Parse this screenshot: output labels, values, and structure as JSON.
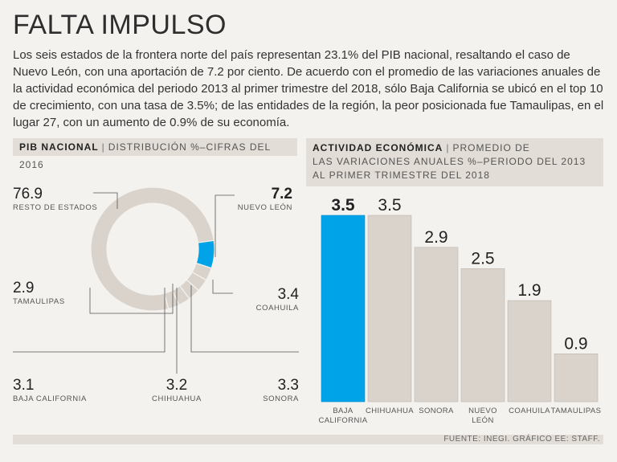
{
  "title": "FALTA IMPULSO",
  "intro": "Los seis estados de la frontera norte del país representan 23.1% del PIB nacional, resaltando el caso de Nuevo León, con una aportación de 7.2 por ciento. De acuerdo con el promedio de las variaciones anuales de la actividad económica del periodo 2013 al primer trimestre del 2018, sólo Baja California se ubicó en el top 10 de crecimiento, con una tasa de 3.5%; de las entidades de la región, la peor posicionada fue Tamaulipas, en el lugar 27, con un aumento de 0.9% de su economía.",
  "left_panel": {
    "label": "PIB NACIONAL",
    "sub": "DISTRIBUCIÓN %–CIFRAS DEL 2016"
  },
  "right_panel": {
    "label": "ACTIVIDAD ECONÓMICA",
    "sub1": "PROMEDIO DE",
    "sub2": "LAS VARIACIONES ANUALES %–PERIODO DEL 2013",
    "sub3": "AL PRIMER TRIMESTRE DEL 2018"
  },
  "footer": "FUENTE: INEGI. GRÁFICO EE: STAFF.",
  "colors": {
    "highlight": "#00a3e8",
    "base": "#d9d3cb",
    "outline": "#bdb6ad"
  },
  "chart_data": [
    {
      "type": "pie",
      "title": "PIB NACIONAL",
      "subtitle": "DISTRIBUCIÓN %–CIFRAS DEL 2016",
      "slices": [
        {
          "label": "RESTO DE ESTADOS",
          "value": 76.9
        },
        {
          "label": "NUEVO LEÓN",
          "value": 7.2
        },
        {
          "label": "COAHUILA",
          "value": 3.4
        },
        {
          "label": "SONORA",
          "value": 3.3
        },
        {
          "label": "CHIHUAHUA",
          "value": 3.2
        },
        {
          "label": "BAJA CALIFORNIA",
          "value": 3.1
        },
        {
          "label": "TAMAULIPAS",
          "value": 2.9
        }
      ],
      "value_labels": [
        "76.9",
        "7.2",
        "3.4",
        "3.3",
        "3.2",
        "3.1",
        "2.9"
      ]
    },
    {
      "type": "bar",
      "title": "ACTIVIDAD ECONÓMICA",
      "categories": [
        "BAJA CALIFORNIA",
        "CHIHUAHUA",
        "SONORA",
        "NUEVO LEÓN",
        "COAHUILA",
        "TAMAULIPAS"
      ],
      "category_lines": [
        [
          "BAJA",
          "CALIFORNIA"
        ],
        [
          "CHIHUAHUA"
        ],
        [
          "SONORA"
        ],
        [
          "NUEVO",
          "LEÓN"
        ],
        [
          "COAHUILA"
        ],
        [
          "TAMAULIPAS"
        ]
      ],
      "values": [
        3.5,
        3.5,
        2.9,
        2.5,
        1.9,
        0.9
      ],
      "value_labels": [
        "3.5",
        "3.5",
        "2.9",
        "2.5",
        "1.9",
        "0.9"
      ],
      "ylim": [
        0,
        3.5
      ]
    }
  ]
}
